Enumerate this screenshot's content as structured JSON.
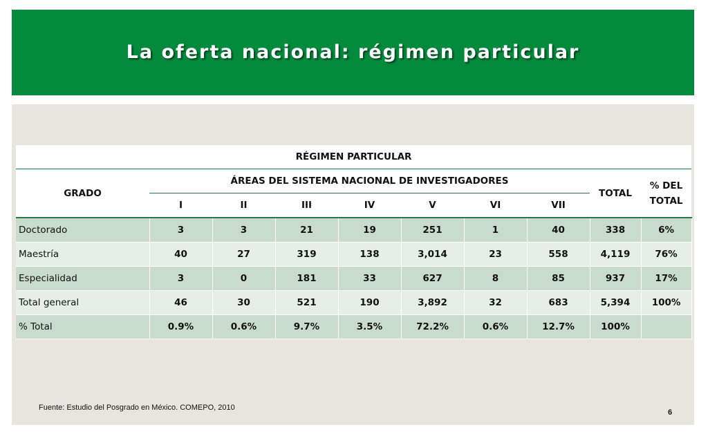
{
  "slide": {
    "title": "La oferta nacional: régimen particular",
    "source": "Fuente:  Estudio del Posgrado en México. COMEPO, 2010",
    "page_number": "6"
  },
  "colors": {
    "header_green": "#038a3c",
    "content_bg": "#e8e4de",
    "row_dark": "#c9dbcd",
    "row_light": "#e6efe7",
    "rule_green": "#1f7a43"
  },
  "table": {
    "caption": "RÉGIMEN PARTICULAR",
    "grado_header": "GRADO",
    "areas_header": "ÁREAS DEL SISTEMA NACIONAL DE INVESTIGADORES",
    "total_header": "TOTAL",
    "pct_header": "% DEL TOTAL",
    "areas": [
      "I",
      "II",
      "III",
      "IV",
      "V",
      "VI",
      "VII"
    ],
    "rows": [
      {
        "label": "Doctorado",
        "values": [
          "3",
          "3",
          "21",
          "19",
          "251",
          "1",
          "40"
        ],
        "total": "338",
        "pct": "6%"
      },
      {
        "label": "Maestría",
        "values": [
          "40",
          "27",
          "319",
          "138",
          "3,014",
          "23",
          "558"
        ],
        "total": "4,119",
        "pct": "76%"
      },
      {
        "label": "Especialidad",
        "values": [
          "3",
          "0",
          "181",
          "33",
          "627",
          "8",
          "85"
        ],
        "total": "937",
        "pct": "17%"
      },
      {
        "label": "Total general",
        "values": [
          "46",
          "30",
          "521",
          "190",
          "3,892",
          "32",
          "683"
        ],
        "total": "5,394",
        "pct": "100%"
      },
      {
        "label": "% Total",
        "values": [
          "0.9%",
          "0.6%",
          "9.7%",
          "3.5%",
          "72.2%",
          "0.6%",
          "12.7%"
        ],
        "total": "100%",
        "pct": ""
      }
    ]
  }
}
